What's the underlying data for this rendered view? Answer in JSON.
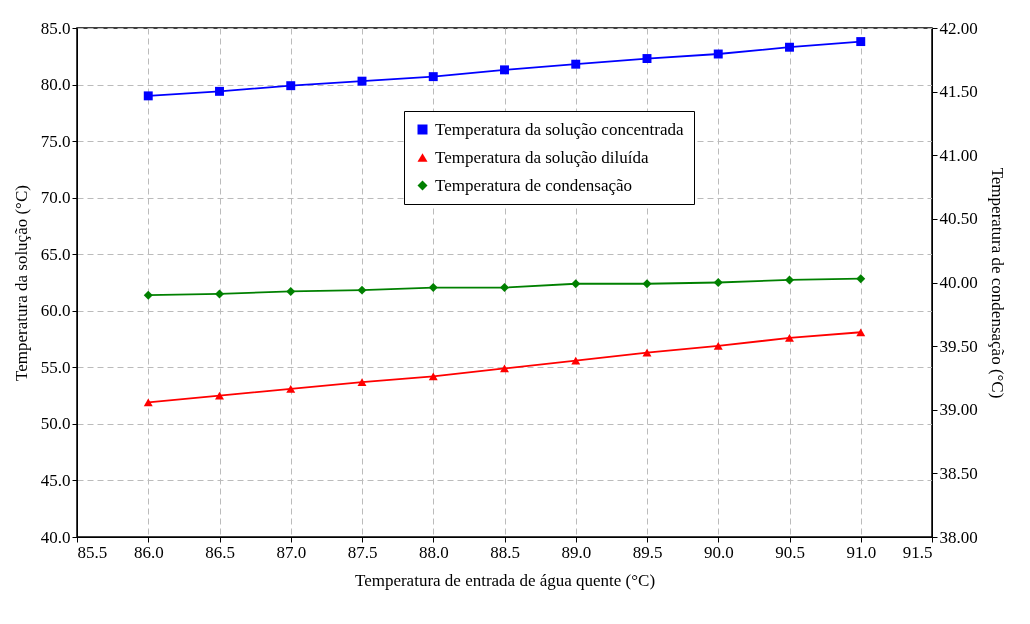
{
  "chart_data": {
    "type": "line",
    "xlabel": "Temperatura de entrada de água quente (°C)",
    "ylabel": "Temperatura da solução (°C)",
    "y2label": "Temperatura de condensação (°C)",
    "x": [
      86.0,
      86.5,
      87.0,
      87.5,
      88.0,
      88.5,
      89.0,
      89.5,
      90.0,
      90.5,
      91.0
    ],
    "series": [
      {
        "name": "Temperatura da solução concentrada",
        "color": "#0000ff",
        "marker": "square",
        "values": [
          79.0,
          79.4,
          79.9,
          80.3,
          80.7,
          81.3,
          81.8,
          82.3,
          82.7,
          83.3,
          83.8
        ]
      },
      {
        "name": "Temperatura da solução diluída",
        "color": "#ff0000",
        "marker": "triangle",
        "values": [
          51.9,
          52.5,
          53.1,
          53.7,
          54.2,
          54.9,
          55.6,
          56.3,
          56.9,
          57.6,
          58.1
        ]
      },
      {
        "name": "Temperatura de condensação",
        "color": "#008000",
        "marker": "diamond",
        "axis": "y2",
        "values": [
          39.9,
          39.91,
          39.93,
          39.94,
          39.96,
          39.96,
          39.99,
          39.99,
          40.0,
          40.02,
          40.03
        ]
      }
    ],
    "xlim": [
      85.5,
      91.5
    ],
    "xticks": [
      85.5,
      {
        "value": 86,
        "label": "86.0"
      },
      86.5,
      {
        "value": 87,
        "label": "87.0"
      },
      87.5,
      {
        "value": 88,
        "label": "88.0"
      },
      88.5,
      {
        "value": 89,
        "label": "89.0"
      },
      89.5,
      {
        "value": 90,
        "label": "90.0"
      },
      90.5,
      {
        "value": 91,
        "label": "91.0"
      },
      91.5
    ],
    "ylim": [
      40,
      85
    ],
    "yticks": [
      {
        "value": 40,
        "label": "40.0"
      },
      {
        "value": 45,
        "label": "45.0"
      },
      {
        "value": 50,
        "label": "50.0"
      },
      {
        "value": 55,
        "label": "55.0"
      },
      {
        "value": 60,
        "label": "60.0"
      },
      {
        "value": 65,
        "label": "65.0"
      },
      {
        "value": 70,
        "label": "70.0"
      },
      {
        "value": 75,
        "label": "75.0"
      },
      {
        "value": 80,
        "label": "80.0"
      },
      {
        "value": 85,
        "label": "85.0"
      }
    ],
    "y2lim": [
      38,
      42
    ],
    "y2ticks": [
      {
        "value": 38,
        "label": "38.00"
      },
      {
        "value": 38.5,
        "label": "38.50"
      },
      {
        "value": 39,
        "label": "39.00"
      },
      {
        "value": 39.5,
        "label": "39.50"
      },
      {
        "value": 40,
        "label": "40.00"
      },
      {
        "value": 40.5,
        "label": "40.50"
      },
      {
        "value": 41,
        "label": "41.00"
      },
      {
        "value": 41.5,
        "label": "41.50"
      },
      {
        "value": 42,
        "label": "42.00"
      }
    ],
    "grid": true,
    "legend": "top right",
    "line_style": "solid"
  }
}
